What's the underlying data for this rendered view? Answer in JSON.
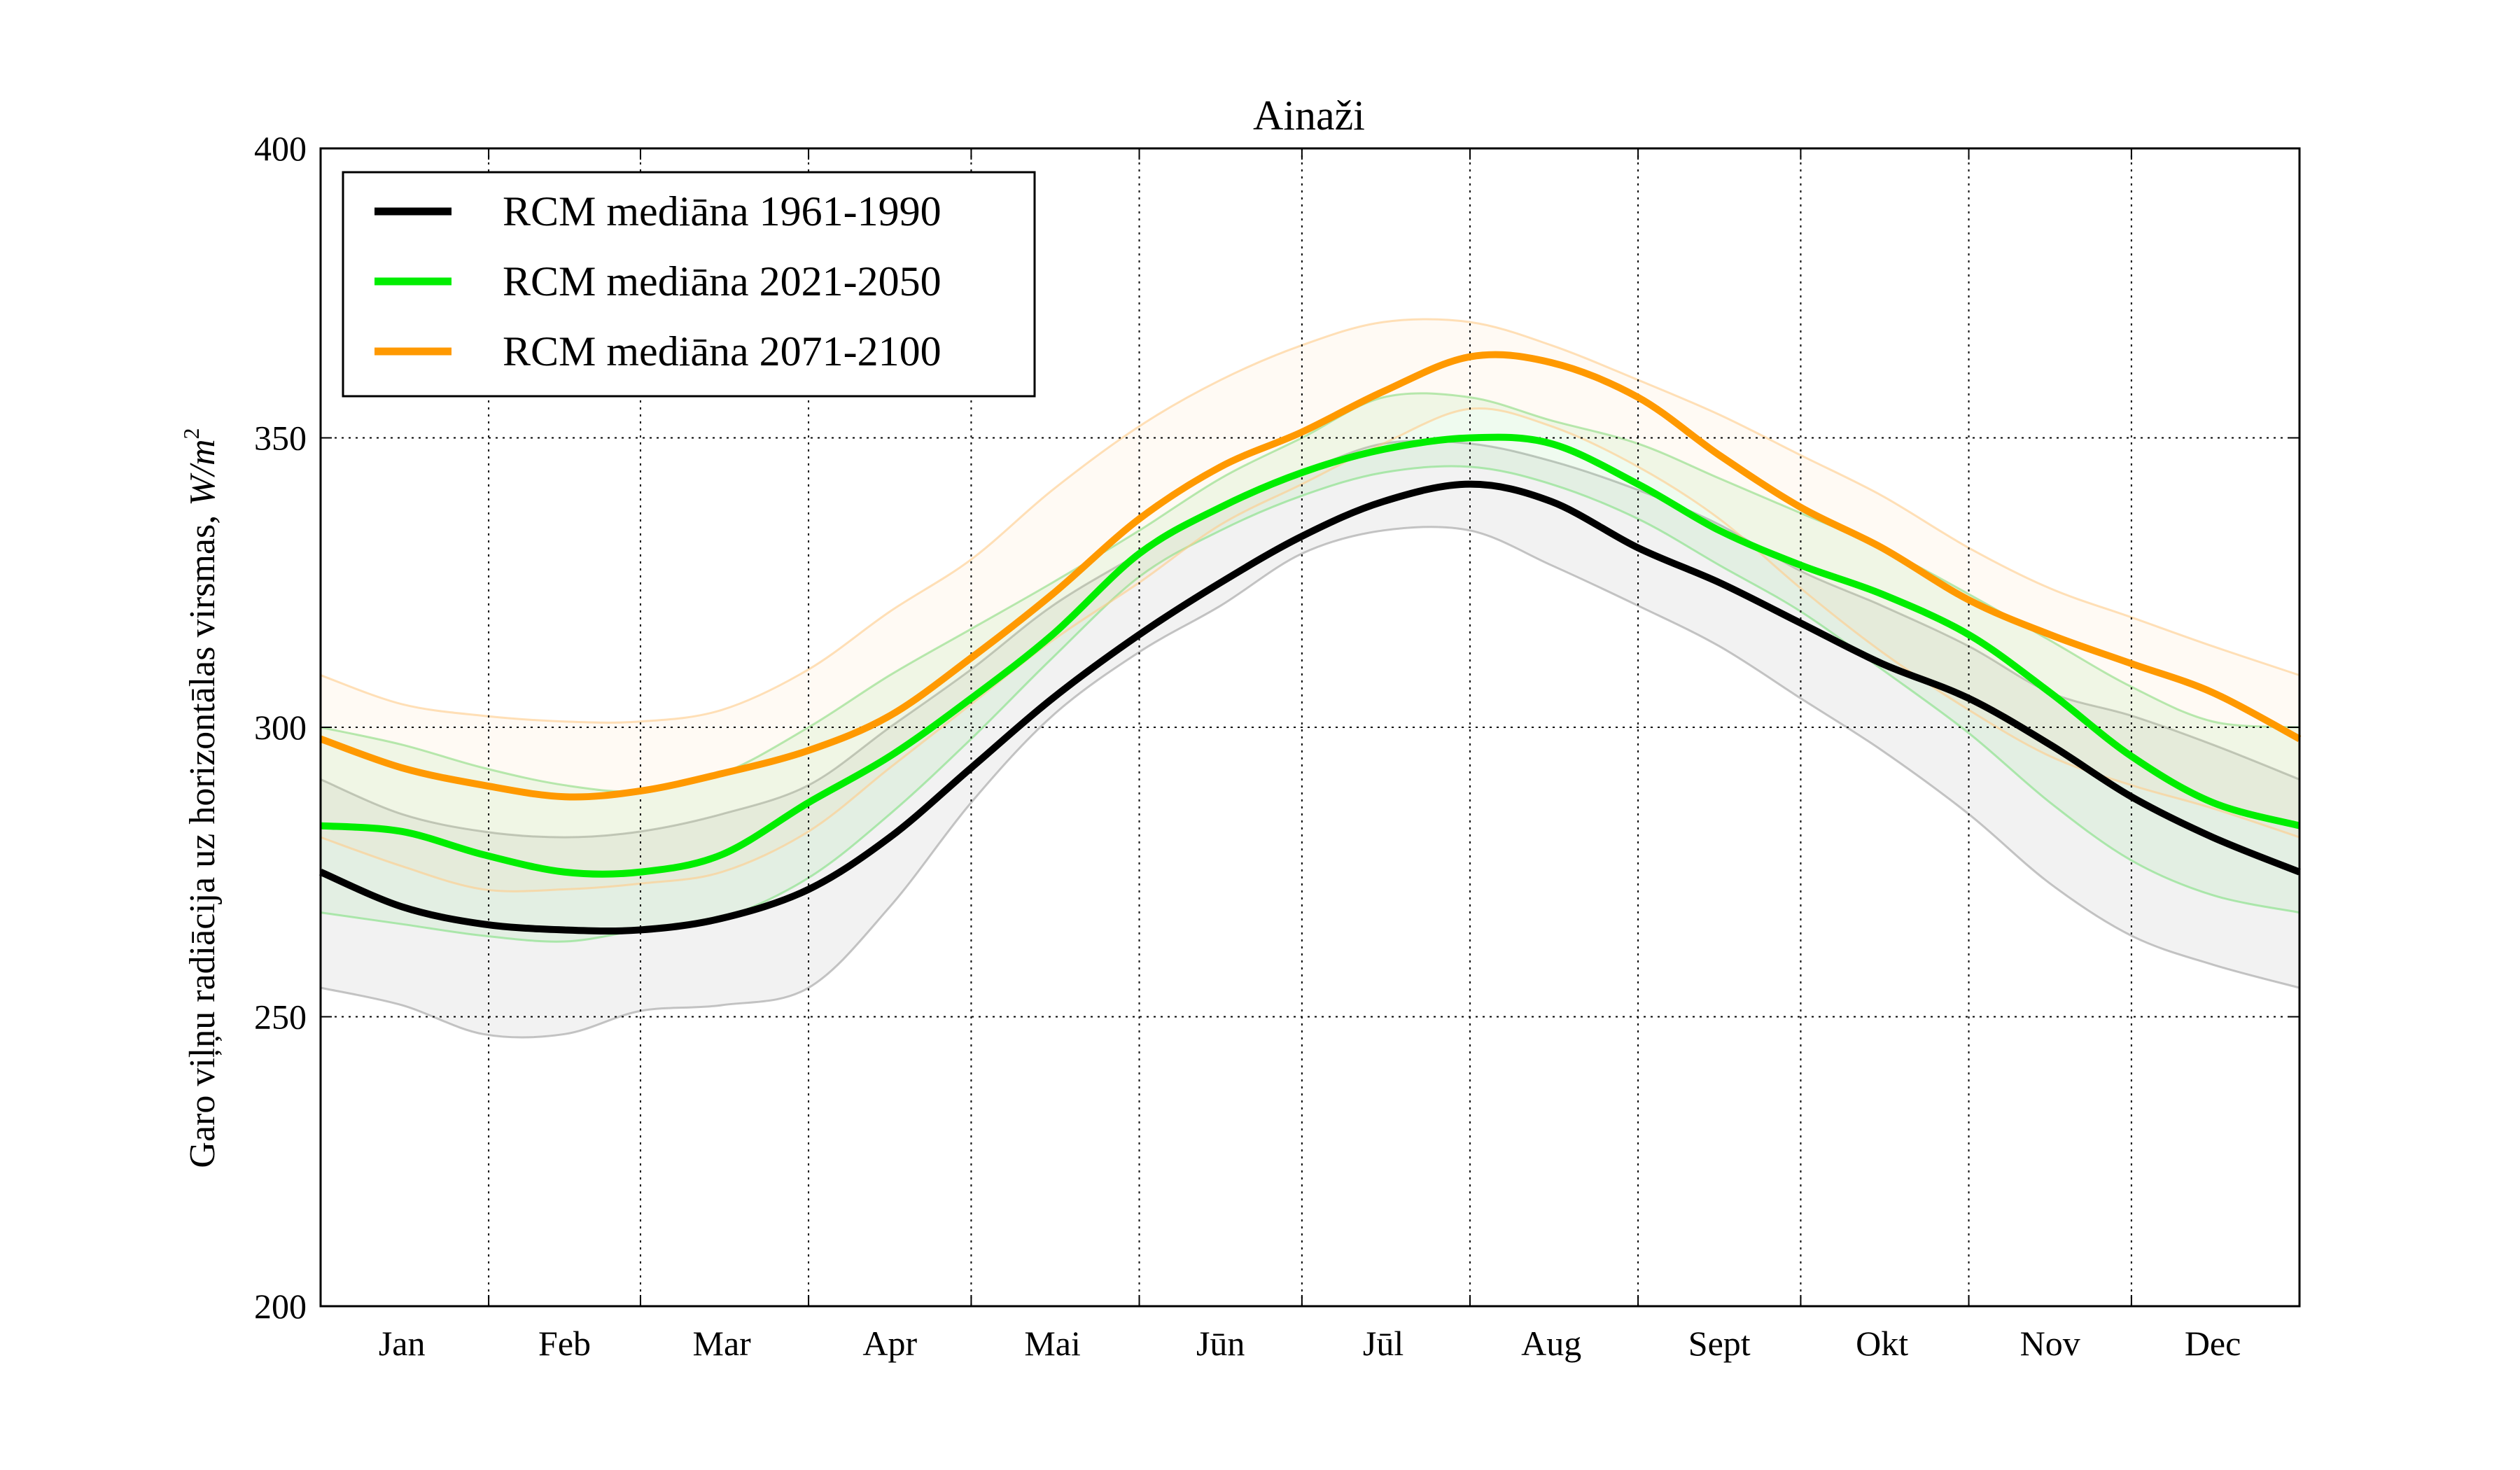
{
  "chart_data": {
    "type": "line",
    "title": "Ainaži",
    "ylabel": "Garo viļņu radiācija uz horizontālas virsmas,",
    "ylabel_unit": {
      "base": "W/m",
      "exp": "2"
    },
    "xlabel": "",
    "ylim": [
      200,
      400
    ],
    "yticks": [
      200,
      250,
      300,
      350,
      400
    ],
    "xlim": [
      0,
      365
    ],
    "month_boundaries": [
      31,
      59,
      90,
      120,
      151,
      181,
      212,
      243,
      273,
      304,
      334
    ],
    "month_labels": [
      {
        "label": "Jan",
        "x": 15
      },
      {
        "label": "Feb",
        "x": 45
      },
      {
        "label": "Mar",
        "x": 74
      },
      {
        "label": "Apr",
        "x": 105
      },
      {
        "label": "Mai",
        "x": 135
      },
      {
        "label": "Jūn",
        "x": 166
      },
      {
        "label": "Jūl",
        "x": 196
      },
      {
        "label": "Aug",
        "x": 227
      },
      {
        "label": "Sept",
        "x": 258
      },
      {
        "label": "Okt",
        "x": 288
      },
      {
        "label": "Nov",
        "x": 319
      },
      {
        "label": "Dec",
        "x": 349
      }
    ],
    "grid": true,
    "legend_position": "top-left",
    "x": [
      0,
      15,
      30,
      45,
      59,
      74,
      90,
      105,
      120,
      135,
      151,
      166,
      181,
      196,
      212,
      227,
      243,
      258,
      273,
      288,
      304,
      319,
      334,
      349,
      365
    ],
    "series": [
      {
        "name": "RCM mediāna 1961-1990",
        "color": "#000000",
        "values": [
          275,
          269,
          266,
          265,
          265,
          267,
          272,
          281,
          293,
          305,
          316,
          325,
          333,
          339,
          342,
          339,
          331,
          325,
          318,
          311,
          305,
          297,
          288,
          281,
          275
        ],
        "band_low": [
          255,
          252,
          247,
          247,
          251,
          252,
          255,
          269,
          287,
          302,
          313,
          321,
          330,
          334,
          334,
          328,
          321,
          314,
          305,
          296,
          285,
          273,
          264,
          259,
          255
        ],
        "band_high": [
          291,
          285,
          282,
          281,
          282,
          285,
          290,
          300,
          310,
          321,
          330,
          338,
          344,
          349,
          349,
          346,
          341,
          335,
          327,
          321,
          314,
          306,
          302,
          297,
          291
        ],
        "band_color": "#9e9e9e"
      },
      {
        "name": "RCM mediāna 2021-2050",
        "color": "#00ee00",
        "values": [
          283,
          282,
          278,
          275,
          275,
          278,
          287,
          295,
          305,
          316,
          330,
          338,
          344,
          348,
          350,
          349,
          342,
          334,
          328,
          323,
          316,
          306,
          295,
          287,
          283
        ],
        "band_low": [
          268,
          266,
          264,
          263,
          265,
          267,
          274,
          285,
          298,
          312,
          326,
          334,
          340,
          344,
          345,
          342,
          336,
          328,
          320,
          310,
          299,
          287,
          277,
          271,
          268
        ],
        "band_high": [
          300,
          297,
          293,
          290,
          289,
          292,
          300,
          309,
          317,
          325,
          334,
          343,
          350,
          357,
          357,
          353,
          349,
          343,
          337,
          331,
          323,
          315,
          307,
          301,
          300
        ],
        "band_color": "#7fe07f"
      },
      {
        "name": "RCM mediāna 2071-2100",
        "color": "#ff9900",
        "values": [
          298,
          293,
          290,
          288,
          289,
          292,
          296,
          302,
          312,
          323,
          336,
          345,
          351,
          358,
          364,
          363,
          357,
          347,
          338,
          331,
          322,
          316,
          311,
          306,
          298
        ],
        "band_low": [
          281,
          276,
          272,
          272,
          273,
          275,
          282,
          293,
          304,
          315,
          325,
          335,
          342,
          349,
          355,
          352,
          345,
          336,
          324,
          313,
          303,
          295,
          290,
          286,
          281
        ],
        "band_high": [
          309,
          304,
          302,
          301,
          301,
          303,
          310,
          320,
          329,
          341,
          352,
          360,
          366,
          370,
          370,
          366,
          360,
          354,
          347,
          340,
          331,
          324,
          319,
          314,
          309
        ],
        "band_color": "#ffcc88"
      }
    ]
  }
}
